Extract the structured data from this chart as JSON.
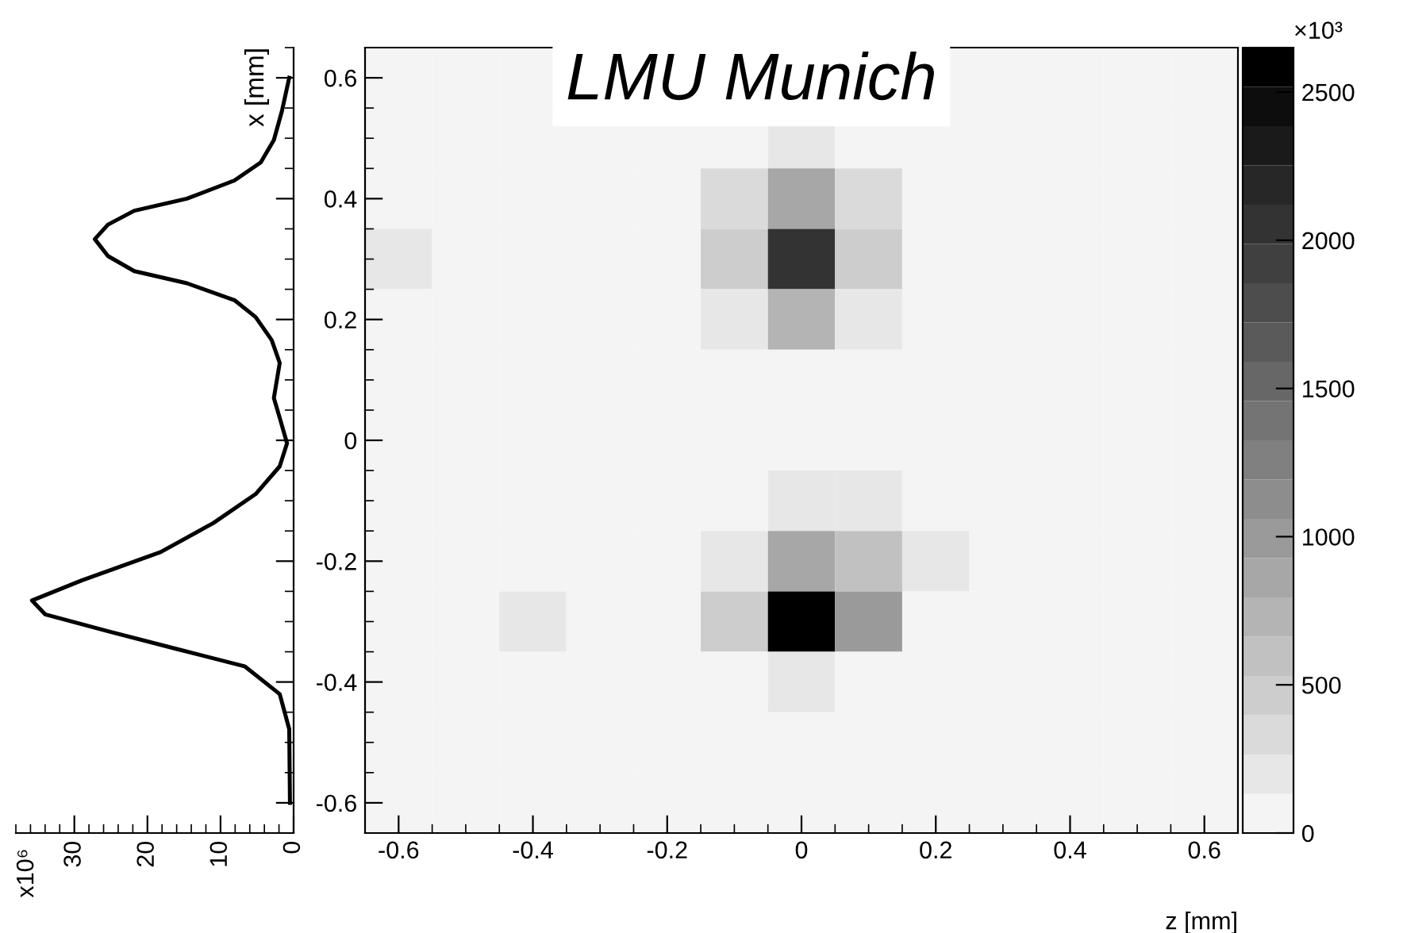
{
  "chart_data": [
    {
      "type": "line",
      "orientation": "horizontal",
      "annotations": [
        "x10⁶"
      ],
      "color": "#000000",
      "x": [
        0.6,
        0.545,
        0.497,
        0.46,
        0.43,
        0.4,
        0.38,
        0.357,
        0.333,
        0.305,
        0.28,
        0.26,
        0.232,
        0.204,
        0.166,
        0.128,
        0.07,
        0.033,
        -0.005,
        -0.043,
        -0.089,
        -0.137,
        -0.185,
        -0.232,
        -0.265,
        -0.288,
        -0.316,
        -0.345,
        -0.374,
        -0.42,
        -0.478,
        -0.6
      ],
      "values": [
        0.6,
        1.6,
        2.7,
        4.5,
        8.1,
        14.6,
        21.8,
        25.4,
        27.2,
        25.4,
        21.8,
        14.6,
        8.1,
        5.2,
        3.0,
        1.9,
        2.7,
        1.8,
        0.9,
        1.9,
        5.2,
        11,
        18.2,
        29,
        35.8,
        34,
        25.4,
        16.1,
        6.7,
        1.9,
        0.6,
        0.5
      ],
      "xlim": [
        38,
        0
      ],
      "xticks": [
        0,
        10,
        20,
        30
      ],
      "ylim": [
        -0.65,
        0.65
      ],
      "yticks": [
        -0.6,
        -0.4,
        -0.2,
        0,
        0.2,
        0.4,
        0.6
      ],
      "tick_labels": "x"
    },
    {
      "type": "heatmap",
      "title": "LMU Munich",
      "xlabel": "z [mm]",
      "ylabel": "x [mm]",
      "clabel": "×10³",
      "categories": [
        "-0.6",
        null,
        "-0.4",
        null,
        "-0.2",
        null,
        "0",
        null,
        "0.2",
        null,
        "0.4",
        null,
        "0.6"
      ],
      "y_categories": [
        "0.6",
        null,
        "0.4",
        null,
        "0.2",
        null,
        "0",
        null,
        "-0.2",
        null,
        "-0.4",
        null,
        "-0.6"
      ],
      "cells": [
        [
          50,
          50,
          50,
          50,
          50,
          50,
          50,
          50,
          50,
          50,
          50,
          50,
          50
        ],
        [
          50,
          50,
          50,
          50,
          50,
          50,
          150,
          50,
          50,
          50,
          50,
          50,
          50
        ],
        [
          100,
          50,
          50,
          50,
          50,
          300,
          900,
          300,
          50,
          50,
          50,
          50,
          50
        ],
        [
          150,
          50,
          50,
          50,
          50,
          500,
          2100,
          500,
          50,
          50,
          50,
          50,
          50
        ],
        [
          50,
          50,
          50,
          50,
          50,
          200,
          700,
          200,
          50,
          50,
          50,
          50,
          50
        ],
        [
          50,
          50,
          50,
          50,
          50,
          50,
          50,
          50,
          50,
          50,
          50,
          50,
          50
        ],
        [
          50,
          50,
          50,
          50,
          50,
          50,
          50,
          50,
          50,
          50,
          50,
          50,
          50
        ],
        [
          50,
          50,
          50,
          50,
          50,
          50,
          150,
          150,
          50,
          50,
          50,
          120,
          50
        ],
        [
          50,
          50,
          50,
          50,
          50,
          250,
          900,
          600,
          150,
          50,
          50,
          50,
          50
        ],
        [
          50,
          50,
          250,
          50,
          50,
          400,
          2600,
          1000,
          100,
          50,
          50,
          50,
          50
        ],
        [
          50,
          50,
          120,
          50,
          50,
          50,
          150,
          50,
          50,
          50,
          50,
          50,
          50
        ],
        [
          50,
          50,
          50,
          50,
          50,
          50,
          50,
          50,
          50,
          50,
          50,
          50,
          50
        ],
        [
          50,
          50,
          50,
          50,
          50,
          50,
          50,
          50,
          50,
          50,
          50,
          50,
          50
        ]
      ],
      "clim": [
        0,
        2650
      ],
      "cticks": [
        0,
        500,
        1000,
        1500,
        2000,
        2500
      ]
    }
  ]
}
